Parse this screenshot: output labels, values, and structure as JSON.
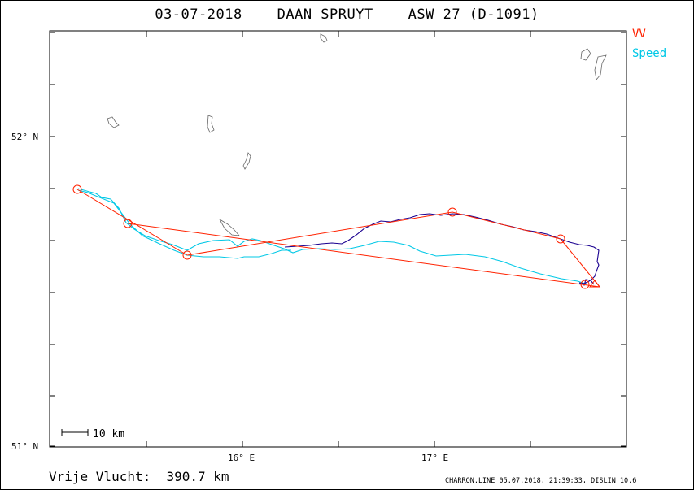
{
  "title": "03-07-2018    DAAN SPRUYT    ASW 27 (D-1091)",
  "legend": {
    "vv_label": "VV",
    "speed_label": "Speed",
    "vv_color": "#ff2200",
    "speed_color": "#00c8e6",
    "track_color": "#1a0090"
  },
  "axes": {
    "y_labels": [
      "52° N",
      "51° N"
    ],
    "x_labels": [
      "16° E",
      "17° E"
    ]
  },
  "scale_bar": {
    "label": "10 km"
  },
  "distance": "Vrije Vlucht:  390.7 km",
  "footer": "CHARRON.LINE 05.07.2018, 21:39:33, DISLIN 10.6"
}
